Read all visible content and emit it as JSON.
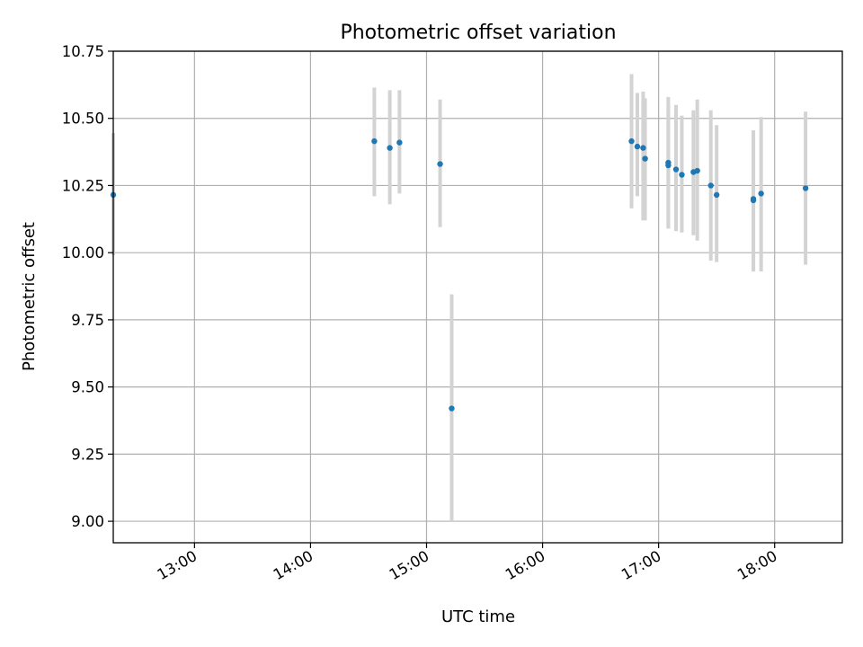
{
  "chart_data": {
    "type": "scatter",
    "title": "Photometric offset variation",
    "xlabel": "UTC time",
    "ylabel": "Photometric offset",
    "x_unit": "UTC time (HH:MM)",
    "xlim": [
      "12:18",
      "18:35"
    ],
    "ylim": [
      8.92,
      10.75
    ],
    "grid": true,
    "legend": "none",
    "x_ticks": [
      "13:00",
      "14:00",
      "15:00",
      "16:00",
      "17:00",
      "18:00"
    ],
    "y_ticks": [
      9.0,
      9.25,
      9.5,
      9.75,
      10.0,
      10.25,
      10.5,
      10.75
    ],
    "y_tick_labels": [
      "9.00",
      "9.25",
      "9.50",
      "9.75",
      "10.00",
      "10.25",
      "10.50",
      "10.75"
    ],
    "colors": {
      "point": "#1f77b4",
      "errorbar": "#d3d3d3",
      "grid": "#b0b0b0"
    },
    "series": [
      {
        "points": [
          {
            "x": "12:18",
            "y": 10.215,
            "low": 9.99,
            "high": 10.445
          },
          {
            "x": "14:33",
            "y": 10.415,
            "low": 10.21,
            "high": 10.615
          },
          {
            "x": "14:41",
            "y": 10.39,
            "low": 10.18,
            "high": 10.605
          },
          {
            "x": "14:46",
            "y": 10.41,
            "low": 10.22,
            "high": 10.605
          },
          {
            "x": "15:07",
            "y": 10.33,
            "low": 10.095,
            "high": 10.57
          },
          {
            "x": "15:13",
            "y": 9.42,
            "low": 9.0,
            "high": 9.845
          },
          {
            "x": "16:46",
            "y": 10.415,
            "low": 10.165,
            "high": 10.665
          },
          {
            "x": "16:49",
            "y": 10.395,
            "low": 10.21,
            "high": 10.595
          },
          {
            "x": "16:52",
            "y": 10.39,
            "low": 10.12,
            "high": 10.6
          },
          {
            "x": "16:53",
            "y": 10.35,
            "low": 10.12,
            "high": 10.575
          },
          {
            "x": "17:05",
            "y": 10.335,
            "low": 10.09,
            "high": 10.58
          },
          {
            "x": "17:05",
            "y": 10.325,
            "low": 10.09,
            "high": 10.545
          },
          {
            "x": "17:09",
            "y": 10.31,
            "low": 10.08,
            "high": 10.55
          },
          {
            "x": "17:12",
            "y": 10.29,
            "low": 10.075,
            "high": 10.51
          },
          {
            "x": "17:18",
            "y": 10.3,
            "low": 10.065,
            "high": 10.53
          },
          {
            "x": "17:20",
            "y": 10.305,
            "low": 10.045,
            "high": 10.57
          },
          {
            "x": "17:27",
            "y": 10.25,
            "low": 9.97,
            "high": 10.53
          },
          {
            "x": "17:30",
            "y": 10.215,
            "low": 9.965,
            "high": 10.475
          },
          {
            "x": "17:49",
            "y": 10.195,
            "low": 9.93,
            "high": 10.455
          },
          {
            "x": "17:49",
            "y": 10.2,
            "low": 9.93,
            "high": 10.455
          },
          {
            "x": "17:53",
            "y": 10.22,
            "low": 9.93,
            "high": 10.505
          },
          {
            "x": "18:16",
            "y": 10.24,
            "low": 9.955,
            "high": 10.525
          }
        ]
      }
    ]
  }
}
